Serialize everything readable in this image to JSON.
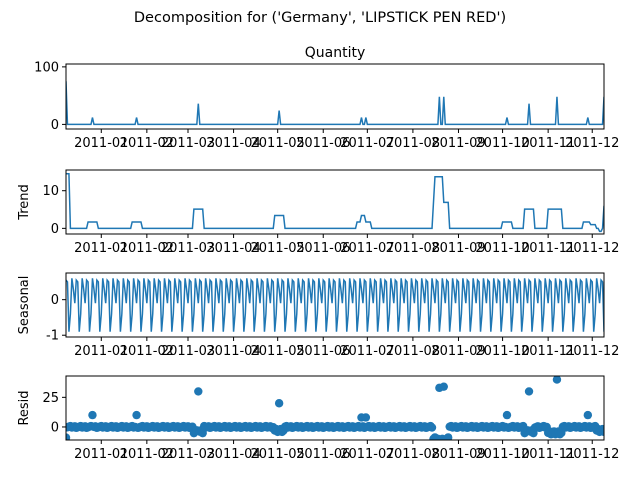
{
  "chart_data": {
    "type": "line",
    "title": "Decomposition for ('Germany', 'LIPSTICK PEN RED')",
    "x_range": [
      "2010-12-08",
      "2011-12-09"
    ],
    "x_ticks": [
      "2011-01",
      "2011-02",
      "2011-03",
      "2011-04",
      "2011-05",
      "2011-06",
      "2011-07",
      "2011-08",
      "2011-09",
      "2011-10",
      "2011-11",
      "2011-12"
    ],
    "color": "#1f77b4",
    "seasonal_pattern": [
      0.55,
      0.5,
      -0.9,
      -0.4,
      0.6,
      0.3,
      -0.1
    ],
    "panels": [
      {
        "key": "observed",
        "type": "line",
        "title": "Quantity",
        "ylabel": "",
        "ylim": [
          -8,
          105
        ],
        "yticks": [
          0,
          100
        ],
        "baseline": 0,
        "points": [
          {
            "date": "2010-12-08",
            "value": 75
          },
          {
            "date": "2010-12-26",
            "value": 12
          },
          {
            "date": "2011-01-25",
            "value": 12
          },
          {
            "date": "2011-03-08",
            "value": 36
          },
          {
            "date": "2011-05-02",
            "value": 24
          },
          {
            "date": "2011-06-27",
            "value": 12
          },
          {
            "date": "2011-06-30",
            "value": 12
          },
          {
            "date": "2011-08-19",
            "value": 48
          },
          {
            "date": "2011-08-22",
            "value": 48
          },
          {
            "date": "2011-10-04",
            "value": 12
          },
          {
            "date": "2011-10-19",
            "value": 36
          },
          {
            "date": "2011-11-07",
            "value": 48
          },
          {
            "date": "2011-11-28",
            "value": 12
          },
          {
            "date": "2011-12-09",
            "value": 48
          }
        ]
      },
      {
        "key": "trend",
        "type": "line",
        "title": "",
        "ylabel": "Trend",
        "ylim": [
          -1.5,
          15.5
        ],
        "yticks": [
          0,
          10
        ],
        "baseline": 0,
        "levels": [
          {
            "start": "2010-12-08",
            "end": "2010-12-10",
            "value": 14.5
          },
          {
            "start": "2010-12-23",
            "end": "2010-12-29",
            "value": 1.7
          },
          {
            "start": "2011-01-22",
            "end": "2011-01-28",
            "value": 1.7
          },
          {
            "start": "2011-03-05",
            "end": "2011-03-11",
            "value": 5.1
          },
          {
            "start": "2011-04-29",
            "end": "2011-05-05",
            "value": 3.4
          },
          {
            "start": "2011-06-24",
            "end": "2011-06-27",
            "value": 1.7
          },
          {
            "start": "2011-06-27",
            "end": "2011-06-30",
            "value": 3.4
          },
          {
            "start": "2011-06-30",
            "end": "2011-07-03",
            "value": 1.7
          },
          {
            "start": "2011-08-15",
            "end": "2011-08-16",
            "value": 6.9
          },
          {
            "start": "2011-08-16",
            "end": "2011-08-22",
            "value": 13.7
          },
          {
            "start": "2011-08-22",
            "end": "2011-08-25",
            "value": 6.9
          },
          {
            "start": "2011-10-01",
            "end": "2011-10-07",
            "value": 1.7
          },
          {
            "start": "2011-10-16",
            "end": "2011-10-22",
            "value": 5.1
          },
          {
            "start": "2011-11-01",
            "end": "2011-11-10",
            "value": 5.1
          },
          {
            "start": "2011-11-25",
            "end": "2011-11-30",
            "value": 1.7
          },
          {
            "start": "2011-11-30",
            "end": "2011-12-03",
            "value": 1.0
          },
          {
            "start": "2011-12-06",
            "end": "2011-12-07",
            "value": -0.8
          },
          {
            "start": "2011-12-09",
            "end": "2011-12-09",
            "value": 6.0
          }
        ]
      },
      {
        "key": "seasonal",
        "type": "line",
        "title": "",
        "ylabel": "Seasonal",
        "ylim": [
          -1.05,
          0.75
        ],
        "yticks": [
          -1,
          0
        ],
        "period_days": 7,
        "amplitude": 1
      },
      {
        "key": "resid",
        "type": "scatter",
        "title": "",
        "ylabel": "Resid",
        "ylim": [
          -11,
          43
        ],
        "yticks": [
          0,
          25
        ],
        "baseline": 0,
        "outliers": [
          {
            "date": "2010-12-08",
            "value": -9
          },
          {
            "date": "2010-12-26",
            "value": 10
          },
          {
            "date": "2011-01-25",
            "value": 10
          },
          {
            "date": "2011-03-08",
            "value": 30
          },
          {
            "date": "2011-05-02",
            "value": 20
          },
          {
            "date": "2011-06-27",
            "value": 8
          },
          {
            "date": "2011-06-30",
            "value": 8
          },
          {
            "date": "2011-08-19",
            "value": 33
          },
          {
            "date": "2011-08-22",
            "value": 34
          },
          {
            "date": "2011-10-04",
            "value": 10
          },
          {
            "date": "2011-10-19",
            "value": 30
          },
          {
            "date": "2011-11-07",
            "value": 40
          },
          {
            "date": "2011-11-28",
            "value": 10
          }
        ],
        "dips": [
          {
            "start": "2011-03-05",
            "end": "2011-03-11",
            "value": -4
          },
          {
            "start": "2011-04-29",
            "end": "2011-05-05",
            "value": -3
          },
          {
            "start": "2011-08-15",
            "end": "2011-08-25",
            "value": -10
          },
          {
            "start": "2011-10-16",
            "end": "2011-10-22",
            "value": -4
          },
          {
            "start": "2011-11-01",
            "end": "2011-11-10",
            "value": -5
          },
          {
            "start": "2011-12-04",
            "end": "2011-12-09",
            "value": -3
          }
        ]
      }
    ]
  }
}
